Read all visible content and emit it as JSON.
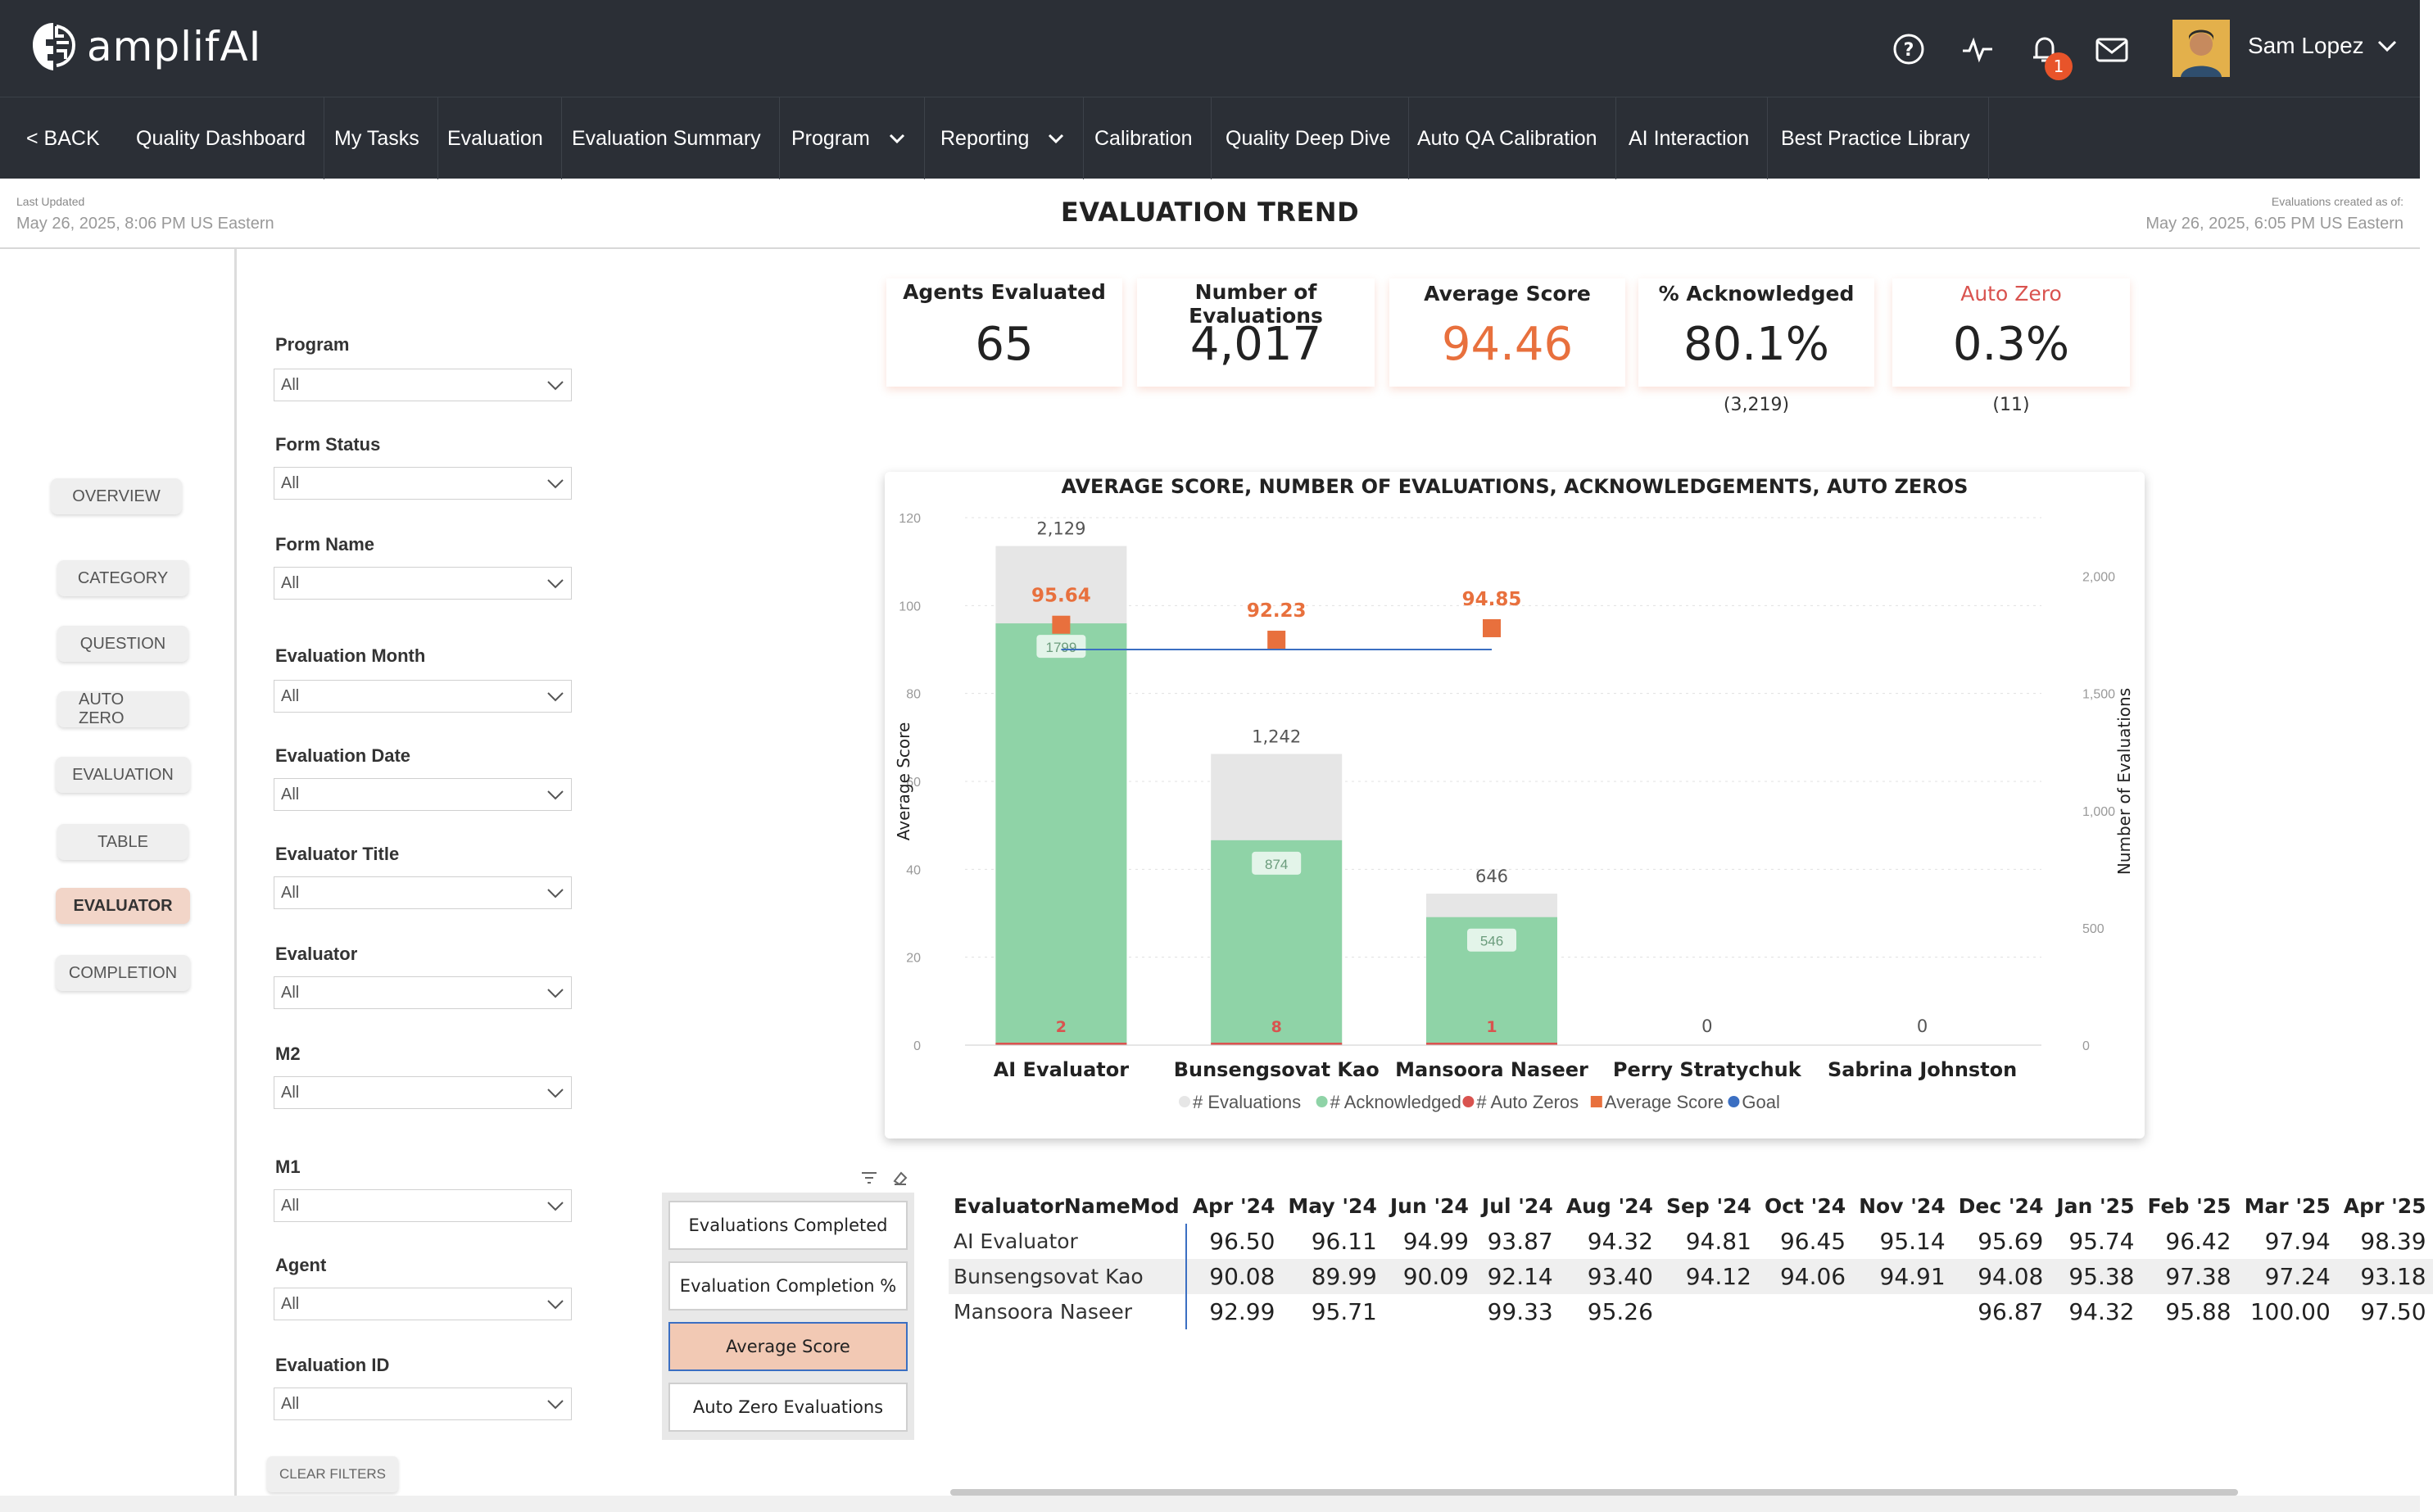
{
  "app": {
    "logo_text": "amplifAI",
    "user_name": "Sam Lopez",
    "notification_count": "1"
  },
  "nav": {
    "back": "< BACK",
    "items": [
      "Quality Dashboard",
      "My Tasks",
      "Evaluation",
      "Evaluation Summary",
      "Program",
      "Reporting",
      "Calibration",
      "Quality Deep Dive",
      "Auto QA Calibration",
      "AI Interaction",
      "Best Practice Library"
    ]
  },
  "header": {
    "last_updated_label": "Last Updated",
    "last_updated_value": "May 26, 2025, 8:06 PM US Eastern",
    "title": "EVALUATION TREND",
    "created_label": "Evaluations created as of:",
    "created_value": "May 26, 2025, 6:05 PM US Eastern"
  },
  "side_nav": [
    "OVERVIEW",
    "CATEGORY",
    "QUESTION",
    "AUTO ZERO",
    "EVALUATION",
    "TABLE",
    "EVALUATOR",
    "COMPLETION"
  ],
  "side_nav_active": "EVALUATOR",
  "filters": [
    {
      "label": "Program",
      "value": "All"
    },
    {
      "label": "Form Status",
      "value": "All"
    },
    {
      "label": "Form Name",
      "value": "All"
    },
    {
      "label": "Evaluation Month",
      "value": "All"
    },
    {
      "label": "Evaluation Date",
      "value": "All"
    },
    {
      "label": "Evaluator Title",
      "value": "All"
    },
    {
      "label": "Evaluator",
      "value": "All"
    },
    {
      "label": "M2",
      "value": "All"
    },
    {
      "label": "M1",
      "value": "All"
    },
    {
      "label": "Agent",
      "value": "All"
    },
    {
      "label": "Evaluation ID",
      "value": "All"
    }
  ],
  "clear_filters": "CLEAR FILTERS",
  "kpis": [
    {
      "label": "Agents Evaluated",
      "value": "65",
      "sub": ""
    },
    {
      "label": "Number of Evaluations",
      "value": "4,017",
      "sub": ""
    },
    {
      "label": "Average Score",
      "value": "94.46",
      "sub": ""
    },
    {
      "label": "% Acknowledged",
      "value": "80.1%",
      "sub": "(3,219)"
    },
    {
      "label": "Auto Zero",
      "value": "0.3%",
      "sub": "(11)"
    }
  ],
  "colors": {
    "accent": "#e8703d",
    "auto_zero": "#d9534f",
    "acknowledged": "#8fd3a7",
    "evaluations": "#e6e6e6",
    "goal": "#3b6fc2",
    "nav_bg": "#2b2f36"
  },
  "chart_data": {
    "type": "bar",
    "title": "AVERAGE SCORE, NUMBER OF EVALUATIONS, ACKNOWLEDGEMENTS, AUTO ZEROS",
    "categories": [
      "AI Evaluator",
      "Bunsengsovat Kao",
      "Mansoora Naseer",
      "Perry Stratychuk",
      "Sabrina Johnston"
    ],
    "series": [
      {
        "name": "# Evaluations",
        "values": [
          2129,
          1242,
          646,
          0,
          0
        ]
      },
      {
        "name": "# Acknowledged",
        "values": [
          1799,
          874,
          546,
          0,
          0
        ]
      },
      {
        "name": "# Auto Zeros",
        "values": [
          2,
          8,
          1,
          0,
          0
        ]
      },
      {
        "name": "Average Score",
        "values": [
          95.64,
          92.23,
          94.85,
          null,
          null
        ]
      },
      {
        "name": "Goal",
        "values": [
          90,
          90,
          90,
          null,
          null
        ]
      }
    ],
    "total_labels": [
      "2,129",
      "1,242",
      "646",
      "0",
      "0"
    ],
    "ack_labels": [
      "1799",
      "874",
      "546",
      "",
      ""
    ],
    "autozero_labels": [
      "2",
      "8",
      "1",
      "",
      ""
    ],
    "score_labels": [
      "95.64",
      "92.23",
      "94.85",
      "",
      ""
    ],
    "ylabel": "Average Score",
    "y2label": "Number of Evaluations",
    "ylim": [
      0,
      120
    ],
    "y2lim": [
      0,
      2250
    ],
    "yticks": [
      "0",
      "20",
      "40",
      "60",
      "80",
      "100",
      "120"
    ],
    "y2ticks": [
      "0",
      "500",
      "1,000",
      "1,500",
      "2,000"
    ],
    "legend": [
      "# Evaluations",
      "# Acknowledged",
      "# Auto Zeros",
      "Average Score",
      "Goal"
    ]
  },
  "toggles": [
    "Evaluations Completed",
    "Evaluation Completion %",
    "Average Score",
    "Auto Zero Evaluations"
  ],
  "toggle_active": "Average Score",
  "table": {
    "columns": [
      "EvaluatorNameMod",
      "Apr '24",
      "May '24",
      "Jun '24",
      "Jul '24",
      "Aug '24",
      "Sep '24",
      "Oct '24",
      "Nov '24",
      "Dec '24",
      "Jan '25",
      "Feb '25",
      "Mar '25",
      "Apr '25"
    ],
    "rows": [
      [
        "AI Evaluator",
        "96.50",
        "96.11",
        "94.99",
        "93.87",
        "94.32",
        "94.81",
        "96.45",
        "95.14",
        "95.69",
        "95.74",
        "96.42",
        "97.94",
        "98.39"
      ],
      [
        "Bunsengsovat Kao",
        "90.08",
        "89.99",
        "90.09",
        "92.14",
        "93.40",
        "94.12",
        "94.06",
        "94.91",
        "94.08",
        "95.38",
        "97.38",
        "97.24",
        "93.18"
      ],
      [
        "Mansoora Naseer",
        "92.99",
        "95.71",
        "",
        "99.33",
        "95.26",
        "",
        "",
        "",
        "96.87",
        "94.32",
        "95.88",
        "100.00",
        "97.50"
      ]
    ]
  }
}
